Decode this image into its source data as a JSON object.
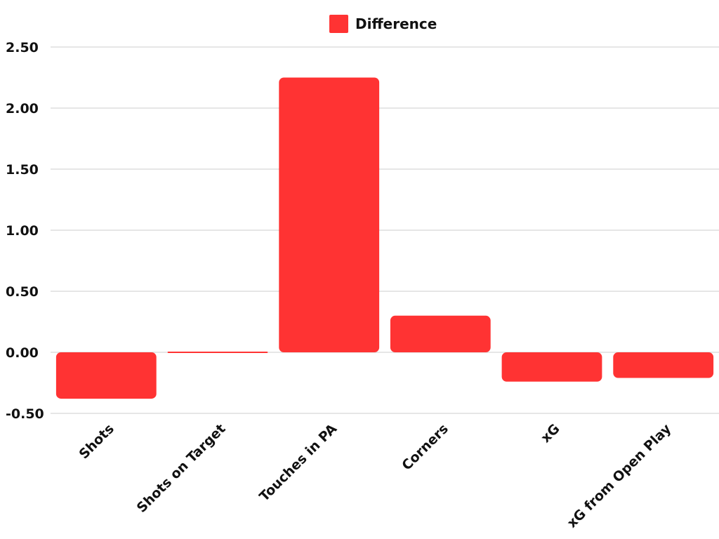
{
  "chart_data": {
    "type": "bar",
    "categories": [
      "Shots",
      "Shots on Target",
      "Touches in PA",
      "Corners",
      "xG",
      "xG from Open Play"
    ],
    "series": [
      {
        "name": "Difference",
        "values": [
          -0.38,
          0.01,
          2.25,
          0.3,
          -0.24,
          -0.21
        ],
        "color": "#ff3333"
      }
    ],
    "ylim": [
      -0.5,
      2.5
    ],
    "yticks": [
      2.5,
      2.0,
      1.5,
      1.0,
      0.5,
      0.0,
      -0.5
    ],
    "ytick_labels": [
      "2.50",
      "2.00",
      "1.50",
      "1.00",
      "0.50",
      "0.00",
      "-0.50"
    ],
    "grid": true,
    "legend_position": "top-center"
  }
}
